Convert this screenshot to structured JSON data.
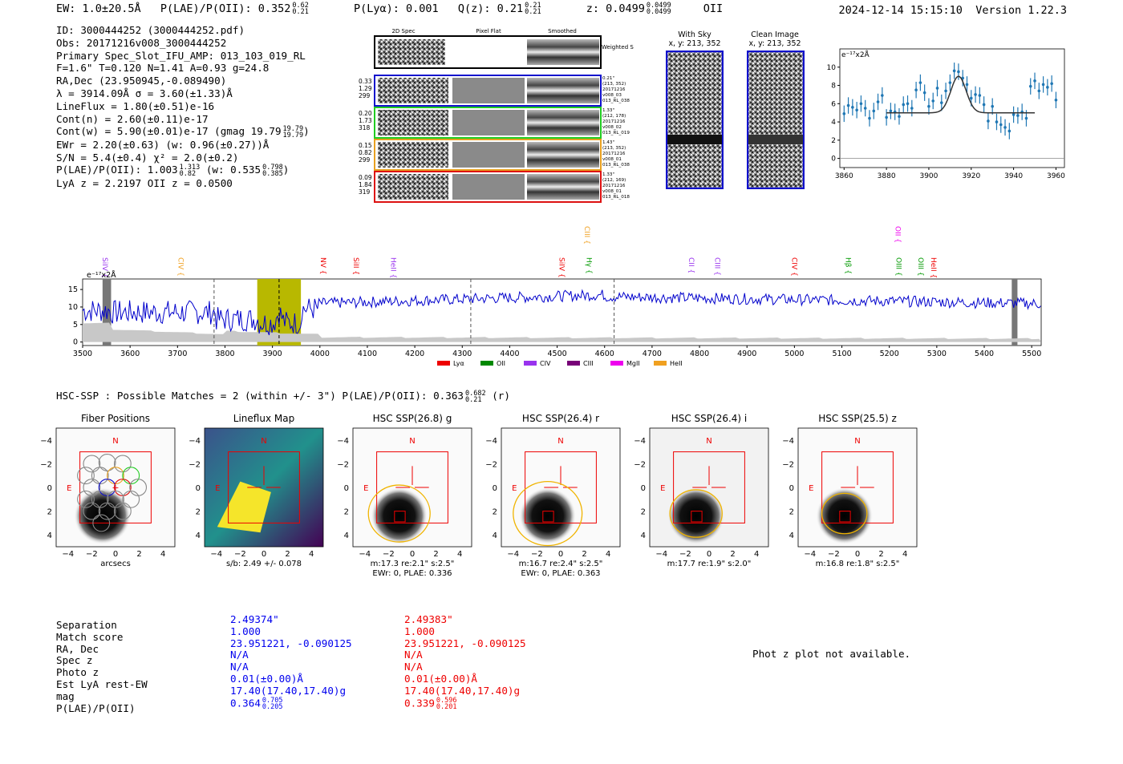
{
  "header": {
    "ew": "EW: 1.0±20.5Å",
    "plae_label": "P(LAE)/P(OII): 0.352",
    "plae_hi": "0.62",
    "plae_lo": "0.21",
    "plya": "P(Lyα): 0.001",
    "qz_label": "Q(z): 0.21",
    "qz_hi": "0.21",
    "qz_lo": "0.21",
    "z_label": "z: 0.0499",
    "z_hi": "0.0499",
    "z_lo": "0.0499",
    "line": "OII",
    "timestamp": "2024-12-14 15:15:10",
    "version": "Version 1.22.3"
  },
  "info_lines": [
    "ID: 3000444252 (3000444252.pdf)",
    "Obs: 20171216v008_3000444252",
    "Primary Spec_Slot_IFU_AMP: 013_103_019_RL",
    "F=1.6\"  T=0.120  N=1.41  A=0.93  g=24.8",
    "RA,Dec (23.950945,-0.089490)",
    "λ = 3914.09Å  σ = 3.60(±1.33)Å",
    "LineFlux = 1.80(±0.51)e-16",
    "Cont(n) = 2.60(±0.11)e-17",
    "Cont(w) = 5.90(±0.01)e-17 (gmag 19.79",
    "EWr = 2.20(±0.63) (w: 0.96(±0.27))Å",
    "S/N = 5.4(±0.4)  χ² = 2.0(±0.2)",
    "P(LAE)/P(OII): 1.003",
    "LyA z = 2.2197  OII z = 0.0500"
  ],
  "info_extras": {
    "gmag_hi": "19.79",
    "gmag_lo": "19.79",
    "plae_hi": "1.313",
    "plae_lo": "0.82",
    "plae_w": "(w: 0.535",
    "plae_w_hi": "0.798",
    "plae_w_lo": "0.385"
  },
  "cutouts": {
    "col_2d": "2D Spec",
    "col_flat": "Pixel Flat",
    "col_smooth": "Smoothed",
    "weighted_sum": "Weighted Sum",
    "rows": [
      {
        "a": "0.33",
        "b": "1.29",
        "c": "299",
        "r1": "0.21\"",
        "r2": "(213, 352)",
        "r3": "20171216",
        "r4": "v008_03",
        "r5": "013_RL_038",
        "color": "#1010cc"
      },
      {
        "a": "0.20",
        "b": "1.73",
        "c": "318",
        "r1": "1.33\"",
        "r2": "(212, 178)",
        "r3": "20171216",
        "r4": "v008_02",
        "r5": "013_RL_019",
        "color": "#22cc22"
      },
      {
        "a": "0.15",
        "b": "0.82",
        "c": "299",
        "r1": "1.43\"",
        "r2": "(213, 352)",
        "r3": "20171216",
        "r4": "v008_01",
        "r5": "013_RL_038",
        "color": "#e8a020"
      },
      {
        "a": "0.09",
        "b": "1.84",
        "c": "319",
        "r1": "1.33\"",
        "r2": "(212, 169)",
        "r3": "20171216",
        "r4": "v008_01",
        "r5": "013_RL_018",
        "color": "#dd1111"
      }
    ],
    "with_sky": "With Sky",
    "with_sky_xy": "x, y: 213, 352",
    "clean": "Clean Image",
    "clean_xy": "x, y: 213, 352"
  },
  "chart_data": [
    {
      "type": "line",
      "title": "",
      "ylabel": "e⁻¹⁷x2Å",
      "x": [
        3860,
        3862,
        3864,
        3866,
        3868,
        3870,
        3872,
        3874,
        3876,
        3878,
        3880,
        3882,
        3884,
        3886,
        3888,
        3890,
        3892,
        3894,
        3896,
        3898,
        3900,
        3902,
        3904,
        3906,
        3908,
        3910,
        3912,
        3914,
        3916,
        3918,
        3920,
        3922,
        3924,
        3926,
        3928,
        3930,
        3932,
        3934,
        3936,
        3938,
        3940,
        3942,
        3944,
        3946,
        3948,
        3950,
        3952,
        3954,
        3956,
        3958,
        3960
      ],
      "values": [
        4.9,
        5.8,
        5.6,
        5.3,
        6.0,
        5.5,
        4.4,
        5.2,
        6.2,
        6.9,
        4.5,
        5.2,
        5.1,
        4.6,
        5.9,
        6.0,
        5.5,
        7.5,
        8.3,
        7.2,
        5.7,
        6.3,
        7.7,
        6.1,
        7.4,
        8.3,
        9.6,
        9.5,
        8.8,
        8.1,
        6.6,
        7.0,
        6.9,
        5.9,
        4.1,
        5.7,
        4.0,
        3.7,
        3.4,
        3.0,
        4.8,
        4.7,
        5.1,
        4.4,
        7.9,
        8.5,
        7.4,
        8.1,
        7.8,
        8.2,
        6.4
      ],
      "fit_peak": 9.0,
      "fit_base": 5.0,
      "fit_center": 3914,
      "fit_sigma": 3.6,
      "xlim": [
        3858,
        3964
      ],
      "ylim": [
        -1,
        12
      ],
      "xticks": [
        "3860",
        "3880",
        "3900",
        "3920",
        "3940",
        "3960"
      ],
      "yticks": [
        "0",
        "2",
        "4",
        "6",
        "8",
        "10"
      ]
    },
    {
      "type": "line",
      "ylabel": "e⁻¹⁷x2Å",
      "xlim": [
        3500,
        5520
      ],
      "ylim": [
        -1,
        18
      ],
      "xticks": [
        "3500",
        "3600",
        "3700",
        "3800",
        "3900",
        "4000",
        "4100",
        "4200",
        "4300",
        "4400",
        "4500",
        "4600",
        "4700",
        "4800",
        "4900",
        "5000",
        "5100",
        "5200",
        "5300",
        "5400",
        "5500"
      ],
      "yticks": [
        "0",
        "5",
        "10",
        "15"
      ],
      "series": [
        {
          "name": "spectrum",
          "color": "#0000cc"
        },
        {
          "name": "error",
          "color": "#bbbbbb"
        }
      ],
      "highlight_range": [
        3868,
        3960
      ],
      "highlight_center": 3914,
      "dashed_lines": [
        3777,
        4318,
        4620
      ],
      "masked_regions": [
        [
          3542,
          3560
        ],
        [
          5458,
          5470
        ]
      ],
      "line_labels": [
        {
          "name": "SiIV",
          "wave": 3537,
          "color": "#9933ee"
        },
        {
          "name": "CIV",
          "wave": 3697,
          "color": "#f0a020"
        },
        {
          "name": "NV",
          "wave": 3997,
          "color": "#ee0000"
        },
        {
          "name": "SiII",
          "wave": 4066,
          "color": "#ee0000"
        },
        {
          "name": "HeII",
          "wave": 4145,
          "color": "#9933ee"
        },
        {
          "name": "SiIV",
          "wave": 4500,
          "color": "#ee0000"
        },
        {
          "name": "CIII",
          "wave": 4553,
          "color": "#f0a020"
        },
        {
          "name": "Hγ",
          "wave": 4557,
          "color": "#009900"
        },
        {
          "name": "CII",
          "wave": 4773,
          "color": "#9933ee"
        },
        {
          "name": "CIII",
          "wave": 4828,
          "color": "#9933ee"
        },
        {
          "name": "CIV",
          "wave": 4990,
          "color": "#ee0000"
        },
        {
          "name": "Hβ",
          "wave": 5103,
          "color": "#009900"
        },
        {
          "name": "OII",
          "wave": 5208,
          "color": "#ee00ee"
        },
        {
          "name": "OIII",
          "wave": 5210,
          "color": "#009900"
        },
        {
          "name": "OIII",
          "wave": 5256,
          "color": "#009900"
        },
        {
          "name": "HeII",
          "wave": 5283,
          "color": "#ee0000"
        }
      ],
      "legend": [
        {
          "name": "Lyα",
          "color": "#ee0000"
        },
        {
          "name": "OII",
          "color": "#008800"
        },
        {
          "name": "CIV",
          "color": "#9933ee"
        },
        {
          "name": "CIII",
          "color": "#770077"
        },
        {
          "name": "MgII",
          "color": "#ee00ee"
        },
        {
          "name": "HeII",
          "color": "#f0a020"
        }
      ]
    }
  ],
  "hsc": {
    "summary": "HSC-SSP : Possible Matches = 2 (within +/- 3\")  P(LAE)/P(OII): 0.363",
    "summary_hi": "0.682",
    "summary_lo": "0.21",
    "summary_band": "(r)",
    "panels": [
      {
        "title": "Fiber Positions",
        "cap1": "arcsecs",
        "cap2": "",
        "cap3": ""
      },
      {
        "title": "Lineflux Map",
        "cap1": "s/b: 2.49 +/- 0.078",
        "cap2": "",
        "cap3": ""
      },
      {
        "title": "HSC SSP(26.8) g",
        "cap1": "m:17.3  re:2.1\"  s:2.5\"",
        "cap2": "EWr: 0, PLAE: 0.336",
        "cap3": ""
      },
      {
        "title": "HSC SSP(26.4) r",
        "cap1": "m:16.7  re:2.4\"  s:2.5\"",
        "cap2": "EWr: 0, PLAE: 0.363",
        "cap3": ""
      },
      {
        "title": "HSC SSP(26.4) i",
        "cap1": "m:17.7  re:1.9\"  s:2.0\"",
        "cap2": "",
        "cap3": ""
      },
      {
        "title": "HSC SSP(25.5) z",
        "cap1": "m:16.8  re:1.8\"  s:2.5\"",
        "cap2": "",
        "cap3": ""
      }
    ],
    "axis_ticks": [
      "−4",
      "−2",
      "0",
      "2",
      "4"
    ],
    "north": "N",
    "east": "E"
  },
  "table": {
    "labels": [
      "Separation",
      "Match score",
      "RA, Dec",
      "Spec z",
      "Photo z",
      "Est LyA rest-EW",
      "mag",
      "P(LAE)/P(OII)"
    ],
    "blue": [
      "2.49374\"",
      "1.000",
      "23.951221, -0.090125",
      "N/A",
      "N/A",
      "0.01(±0.00)Å",
      "17.40(17.40,17.40)g",
      "0.364"
    ],
    "blue_hi": "0.705",
    "blue_lo": "0.205",
    "red": [
      "2.49383\"",
      "1.000",
      "23.951221, -0.090125",
      "N/A",
      "N/A",
      "0.01(±0.00)Å",
      "17.40(17.40,17.40)g",
      "0.339"
    ],
    "red_hi": "0.596",
    "red_lo": "0.201",
    "blue_color": "#0000ee",
    "red_color": "#ee0000"
  },
  "phot_z": "Phot z plot not available."
}
